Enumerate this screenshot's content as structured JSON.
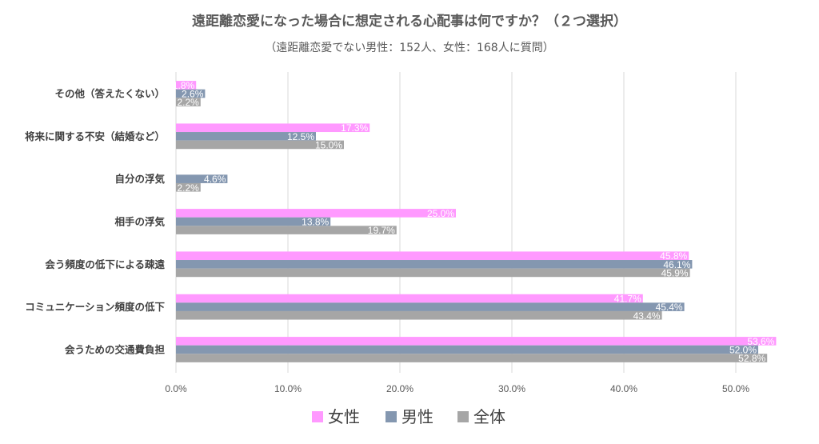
{
  "chart_data": {
    "type": "bar",
    "orientation": "horizontal",
    "title": "遠距離恋愛になった場合に想定される心配事は何ですか？（２つ選択）",
    "subtitle": "（遠距離恋愛でない男性：152人、女性：168人に質問）",
    "categories": [
      "その他（答えたくない）",
      "将来に関する不安（結婚など）",
      "自分の浮気",
      "相手の浮気",
      "会う頻度の低下による疎遠",
      "コミュニケーション頻度の低下",
      "会うための交通費負担"
    ],
    "series": [
      {
        "name": "女性",
        "color": "#ff99ff",
        "values": [
          1.8,
          17.3,
          null,
          25.0,
          45.8,
          41.7,
          53.6
        ],
        "labels": [
          "1.8%",
          "17.3%",
          "",
          "25.0%",
          "45.8%",
          "41.7%",
          "53.6%"
        ]
      },
      {
        "name": "男性",
        "color": "#8497b0",
        "values": [
          2.6,
          12.5,
          4.6,
          13.8,
          46.1,
          45.4,
          52.0
        ],
        "labels": [
          "2.6%",
          "12.5%",
          "4.6%",
          "13.8%",
          "46.1%",
          "45.4%",
          "52.0%"
        ]
      },
      {
        "name": "全体",
        "color": "#a6a6a6",
        "values": [
          2.2,
          15.0,
          2.2,
          19.7,
          45.9,
          43.4,
          52.8
        ],
        "labels": [
          "2.2%",
          "15.0%",
          "2.2%",
          "19.7%",
          "45.9%",
          "43.4%",
          "52.8%"
        ]
      }
    ],
    "xlim": [
      0,
      50
    ],
    "xticks": [
      0,
      10,
      20,
      30,
      40,
      50
    ],
    "xtick_labels": [
      "0.0%",
      "10.0%",
      "20.0%",
      "30.0%",
      "40.0%",
      "50.0%"
    ],
    "grid": true,
    "legend_position": "bottom"
  }
}
